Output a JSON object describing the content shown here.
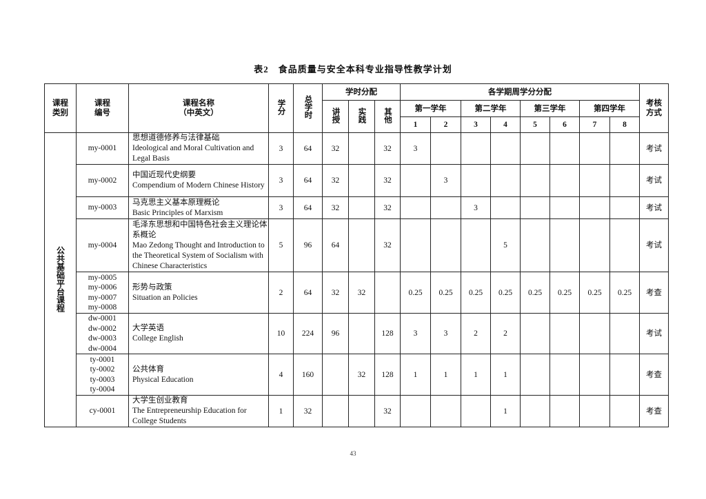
{
  "title": "表2　食品质量与安全本科专业指导性教学计划",
  "headers": {
    "category": "课程类别",
    "code": "课程编号",
    "name_l1": "课程名称",
    "name_l2": "（中英文）",
    "credit": "学分",
    "total_hours": "总学时",
    "hours_alloc": "学时分配",
    "lecture": "讲授",
    "practice": "实践",
    "other": "其他",
    "semester_alloc": "各学期周学分分配",
    "years": [
      "第一学年",
      "第二学年",
      "第三学年",
      "第四学年"
    ],
    "semesters": [
      "1",
      "2",
      "3",
      "4",
      "5",
      "6",
      "7",
      "8"
    ],
    "exam": "考核方式"
  },
  "category": "公共基础平台课程",
  "rows": [
    {
      "codes": [
        "my-0001"
      ],
      "cn": "思想道德修养与法律基础",
      "en": "Ideological and Moral Cultivation and Legal Basis",
      "credit": "3",
      "total": "64",
      "lecture": "32",
      "practice": "",
      "other": "32",
      "sem": [
        "3",
        "",
        "",
        "",
        "",
        "",
        "",
        ""
      ],
      "exam": "考试"
    },
    {
      "codes": [
        "my-0002"
      ],
      "cn": "中国近现代史纲要",
      "en": "Compendium of Modern Chinese History",
      "credit": "3",
      "total": "64",
      "lecture": "32",
      "practice": "",
      "other": "32",
      "sem": [
        "",
        "3",
        "",
        "",
        "",
        "",
        "",
        ""
      ],
      "exam": "考试"
    },
    {
      "codes": [
        "my-0003"
      ],
      "cn": "马克思主义基本原理概论",
      "en": "Basic Principles of Marxism",
      "credit": "3",
      "total": "64",
      "lecture": "32",
      "practice": "",
      "other": "32",
      "sem": [
        "",
        "",
        "3",
        "",
        "",
        "",
        "",
        ""
      ],
      "exam": "考试"
    },
    {
      "codes": [
        "my-0004"
      ],
      "cn": "毛泽东思想和中国特色社会主义理论体系概论",
      "en": "Mao Zedong Thought and Introduction to the Theoretical System of Socialism with Chinese Characteristics",
      "credit": "5",
      "total": "96",
      "lecture": "64",
      "practice": "",
      "other": "32",
      "sem": [
        "",
        "",
        "",
        "5",
        "",
        "",
        "",
        ""
      ],
      "exam": "考试"
    },
    {
      "codes": [
        "my-0005",
        "my-0006",
        "my-0007",
        "my-0008"
      ],
      "cn": "形势与政策",
      "en": "Situation an Policies",
      "credit": "2",
      "total": "64",
      "lecture": "32",
      "practice": "32",
      "other": "",
      "sem": [
        "0.25",
        "0.25",
        "0.25",
        "0.25",
        "0.25",
        "0.25",
        "0.25",
        "0.25"
      ],
      "exam": "考查"
    },
    {
      "codes": [
        "dw-0001",
        "dw-0002",
        "dw-0003",
        "dw-0004"
      ],
      "cn": "大学英语",
      "en": "College English",
      "credit": "10",
      "total": "224",
      "lecture": "96",
      "practice": "",
      "other": "128",
      "sem": [
        "3",
        "3",
        "2",
        "2",
        "",
        "",
        "",
        ""
      ],
      "exam": "考试"
    },
    {
      "codes": [
        "ty-0001",
        "ty-0002",
        "ty-0003",
        "ty-0004"
      ],
      "cn": "公共体育",
      "en": "Physical Education",
      "credit": "4",
      "total": "160",
      "lecture": "",
      "practice": "32",
      "other": "128",
      "sem": [
        "1",
        "1",
        "1",
        "1",
        "",
        "",
        "",
        ""
      ],
      "exam": "考查"
    },
    {
      "codes": [
        "cy-0001"
      ],
      "cn": "大学生创业教育",
      "en": "The Entrepreneurship Education for College Students",
      "credit": "1",
      "total": "32",
      "lecture": "",
      "practice": "",
      "other": "32",
      "sem": [
        "",
        "",
        "",
        "1",
        "",
        "",
        "",
        ""
      ],
      "exam": "考查"
    }
  ],
  "page_number": "43"
}
